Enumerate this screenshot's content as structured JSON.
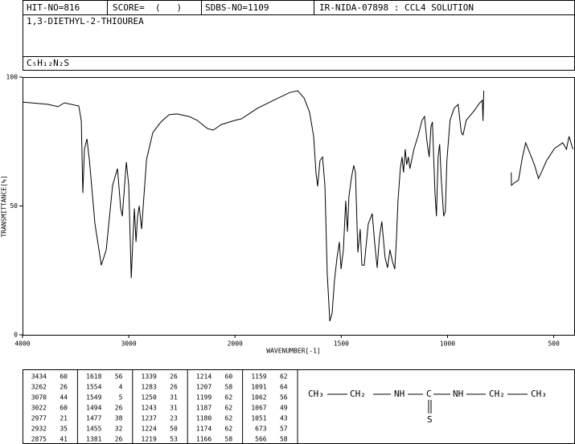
{
  "header": {
    "hit_no": "HIT-NO=816",
    "score": "SCORE=  (   )",
    "sdbs_no": "SDBS-NO=1109",
    "source": "IR-NIDA-07898 : CCL4 SOLUTION",
    "compound": "1,3-DIETHYL-2-THIOUREA",
    "formula": "C₅H₁₂N₂S"
  },
  "chart_data": {
    "type": "line",
    "x_label": "WAVENUMBER[-1]",
    "y_label": "TRANSMITTANCE[%]",
    "xlim": [
      4000,
      400
    ],
    "x_scale_break": 2000,
    "xticks": [
      4000,
      3000,
      2000,
      1500,
      1000,
      500
    ],
    "ylim": [
      0,
      100
    ],
    "yticks": [
      0,
      50,
      100
    ],
    "series": [
      {
        "color": "#000000",
        "x": [
          4000,
          3758,
          3667,
          3606,
          3470,
          3447,
          3432,
          3417,
          3394,
          3371,
          3318,
          3258,
          3212,
          3152,
          3106,
          3076,
          3061,
          3045,
          3023,
          3000,
          2977,
          2962,
          2947,
          2932,
          2917,
          2902,
          2879,
          2864,
          2833,
          2773,
          2697,
          2621,
          2545,
          2432,
          2356,
          2258,
          2205,
          2129,
          2000,
          1970,
          1894,
          1819,
          1743,
          1705,
          1675,
          1649,
          1630,
          1619,
          1611,
          1600,
          1588,
          1577,
          1566,
          1554,
          1543,
          1532,
          1520,
          1509,
          1501,
          1490,
          1479,
          1471,
          1464,
          1452,
          1441,
          1433,
          1422,
          1411,
          1403,
          1392,
          1373,
          1354,
          1343,
          1331,
          1320,
          1309,
          1294,
          1282,
          1271,
          1260,
          1248,
          1241,
          1233,
          1222,
          1214,
          1207,
          1199,
          1192,
          1184,
          1177,
          1169,
          1158,
          1139,
          1120,
          1108,
          1097,
          1086,
          1078,
          1071,
          1059,
          1052,
          1044,
          1037,
          1029,
          1018,
          1010,
          1003,
          988,
          969,
          950,
          935,
          927,
          912,
          874,
          848,
          836,
          833,
          829,
          780,
          700,
          699,
          685,
          666,
          647,
          632,
          610,
          591,
          572,
          553,
          534,
          496,
          458,
          440,
          428,
          410
        ],
        "values": [
          90.3,
          89.4,
          88.5,
          90,
          88.8,
          83,
          55,
          72,
          76,
          68,
          43,
          27,
          33,
          58,
          64.5,
          49,
          46,
          55,
          67,
          58,
          22,
          36,
          49,
          36,
          46,
          50,
          41,
          50,
          68,
          78.5,
          82.6,
          85.4,
          85.7,
          84.7,
          83.2,
          80,
          79.4,
          81.6,
          83.2,
          83.8,
          87.9,
          91,
          94,
          94.7,
          91.9,
          86.3,
          77,
          63,
          57.6,
          67.6,
          69,
          58,
          24,
          5.3,
          8.4,
          21,
          30,
          36,
          25.5,
          33,
          52,
          40,
          53.6,
          61,
          65.7,
          63,
          32,
          41,
          27,
          27,
          43,
          47,
          36,
          26,
          38,
          44,
          30,
          26,
          33,
          28.7,
          25.5,
          36,
          52,
          64.5,
          69,
          63,
          72,
          66,
          69,
          64.5,
          67.6,
          72,
          77,
          83.2,
          84.7,
          75.4,
          69,
          80.7,
          82.6,
          55,
          46,
          69,
          74,
          60,
          46,
          48,
          67.6,
          83.2,
          87.9,
          89.4,
          78.5,
          77.6,
          83.2,
          87,
          90,
          91,
          83,
          94.7,
          null,
          63,
          58,
          59,
          60,
          69,
          74.5,
          70,
          66,
          60.7,
          64,
          67.6,
          72.3,
          74.5,
          72,
          77,
          72
        ]
      }
    ]
  },
  "peak_table": [
    [
      [
        "3434",
        "60"
      ],
      [
        "3262",
        "26"
      ],
      [
        "3070",
        "44"
      ],
      [
        "3022",
        "60"
      ],
      [
        "2977",
        "21"
      ],
      [
        "2932",
        "35"
      ],
      [
        "2875",
        "41"
      ]
    ],
    [
      [
        "1618",
        "56"
      ],
      [
        "1554",
        "4"
      ],
      [
        "1549",
        "5"
      ],
      [
        "1494",
        "26"
      ],
      [
        "1477",
        "38"
      ],
      [
        "1455",
        "32"
      ],
      [
        "1381",
        "26"
      ]
    ],
    [
      [
        "1339",
        "26"
      ],
      [
        "1283",
        "26"
      ],
      [
        "1250",
        "31"
      ],
      [
        "1243",
        "31"
      ],
      [
        "1237",
        "23"
      ],
      [
        "1224",
        "50"
      ],
      [
        "1219",
        "53"
      ]
    ],
    [
      [
        "1214",
        "60"
      ],
      [
        "1207",
        "58"
      ],
      [
        "1199",
        "62"
      ],
      [
        "1187",
        "62"
      ],
      [
        "1180",
        "62"
      ],
      [
        "1174",
        "62"
      ],
      [
        "1166",
        "58"
      ]
    ],
    [
      [
        "1159",
        "62"
      ],
      [
        "1091",
        "64"
      ],
      [
        "1062",
        "56"
      ],
      [
        "1067",
        "49"
      ],
      [
        "1051",
        "43"
      ],
      [
        "673",
        "57"
      ],
      [
        "566",
        "58"
      ]
    ]
  ],
  "structure": {
    "groups": [
      "CH₃",
      "CH₂",
      "NH",
      "C",
      "NH",
      "CH₂",
      "CH₃"
    ],
    "double_bond_atom": "S"
  }
}
